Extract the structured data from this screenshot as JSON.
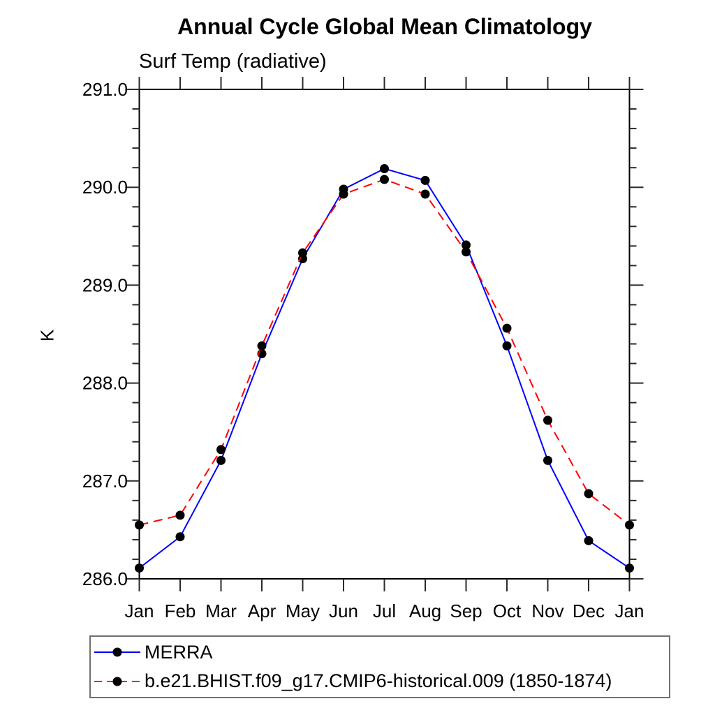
{
  "title": "Annual Cycle Global Mean Climatology",
  "subtitle": "Surf Temp (radiative)",
  "ylabel": "K",
  "colors": {
    "background": "#ffffff",
    "axis": "#000000",
    "tick": "#2b2b2b",
    "marker": "#000000",
    "legend_border": "#707070",
    "series_blue": "#0000ff",
    "series_red": "#ff0000"
  },
  "chart_data": {
    "type": "line",
    "title": "Annual Cycle Global Mean Climatology",
    "subtitle": "Surf Temp (radiative)",
    "xlabel": "",
    "ylabel": "K",
    "categories": [
      "Jan",
      "Feb",
      "Mar",
      "Apr",
      "May",
      "Jun",
      "Jul",
      "Aug",
      "Sep",
      "Oct",
      "Nov",
      "Dec",
      "Jan"
    ],
    "y_tick_labels": [
      "291.0",
      "290.0",
      "289.0",
      "288.0",
      "287.0",
      "286.0"
    ],
    "ylim": [
      286.0,
      291.0
    ],
    "y_major_step": 1.0,
    "y_minor_step": 0.2,
    "grid": false,
    "tick_style": "outward, all four sides, NCL style",
    "legend_position": "below plot, left-aligned, bordered box",
    "series": [
      {
        "name": "MERRA",
        "color": "#0000ff",
        "line_style": "solid",
        "marker": "filled-circle",
        "marker_color": "#000000",
        "values": [
          286.11,
          286.43,
          287.21,
          288.3,
          289.27,
          289.98,
          290.19,
          290.07,
          289.41,
          288.38,
          287.21,
          286.39,
          286.11
        ]
      },
      {
        "name": "b.e21.BHIST.f09_g17.CMIP6-historical.009 (1850-1874)",
        "color": "#ff0000",
        "line_style": "dashed",
        "marker": "filled-circle",
        "marker_color": "#000000",
        "values": [
          286.55,
          286.65,
          287.32,
          288.38,
          289.33,
          289.93,
          290.08,
          289.93,
          289.34,
          288.56,
          287.62,
          286.87,
          286.55
        ]
      }
    ]
  }
}
